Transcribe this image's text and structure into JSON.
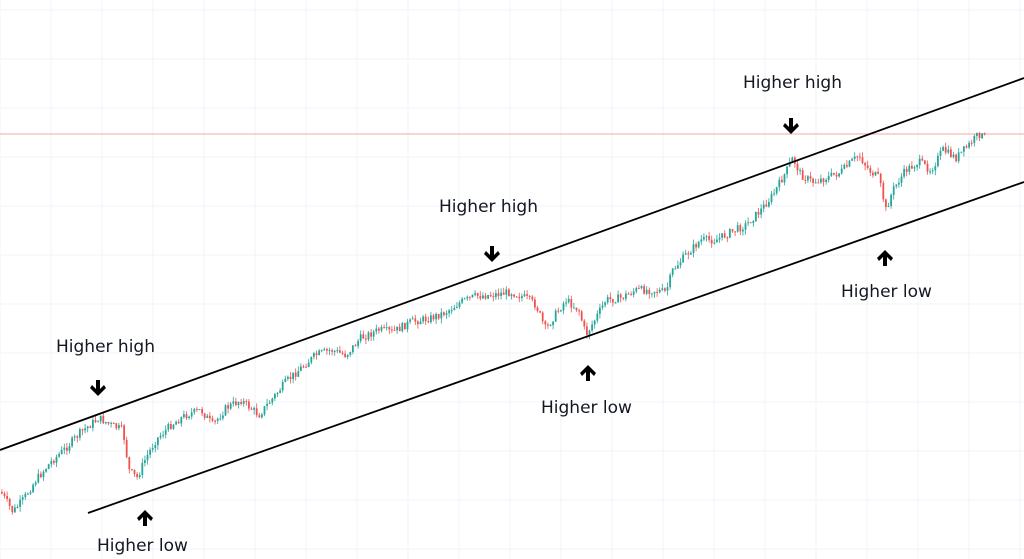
{
  "chart_data": {
    "type": "candlestick",
    "title": "",
    "xlabel": "",
    "ylabel": "",
    "grid": true,
    "colors": {
      "up": "#26a69a",
      "down": "#ef5350",
      "channel": "#000000",
      "price_line": "#f28b82",
      "grid": "#f0f3fa"
    },
    "annotations": [
      {
        "text": "Higher high",
        "kind": "high"
      },
      {
        "text": "Higher high",
        "kind": "high"
      },
      {
        "text": "Higher high",
        "kind": "high"
      },
      {
        "text": "Higher low",
        "kind": "low"
      },
      {
        "text": "Higher low",
        "kind": "low"
      },
      {
        "text": "Higher low",
        "kind": "low"
      }
    ],
    "trend": "ascending channel"
  }
}
